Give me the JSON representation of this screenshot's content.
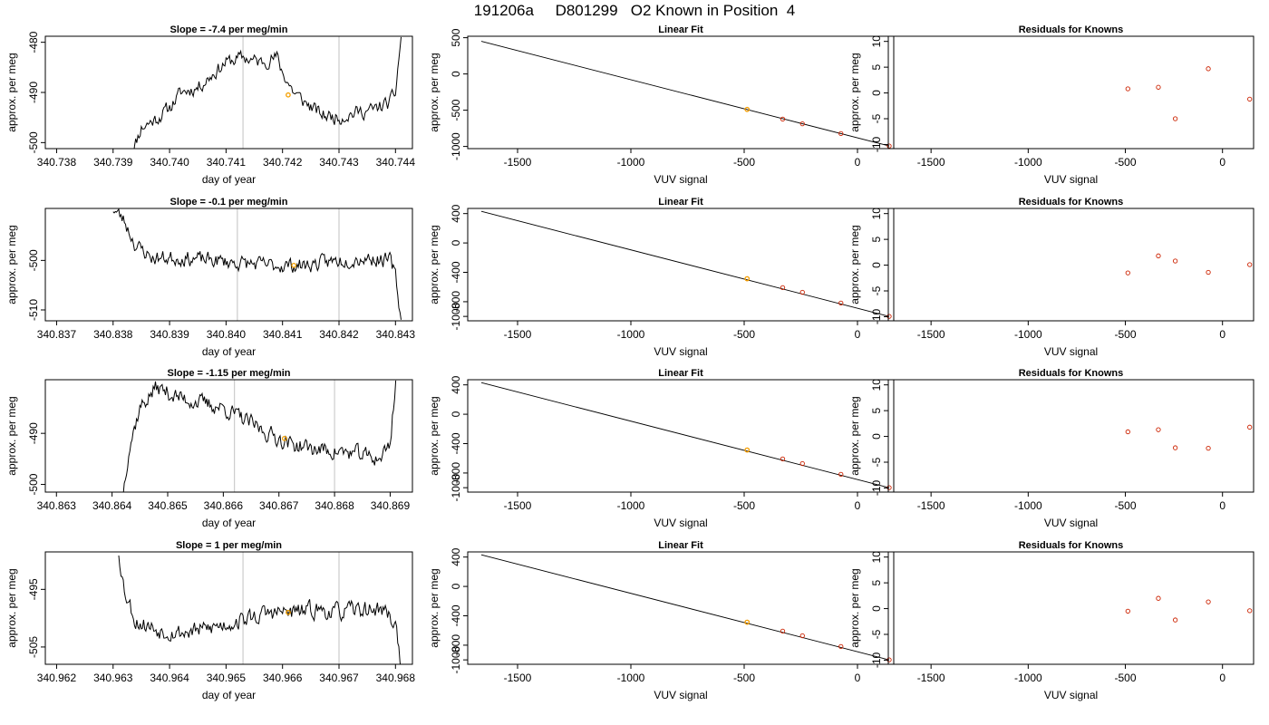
{
  "figure": {
    "title": "191206a     D801299   O2 Known in Position  4"
  },
  "colors": {
    "line": "#000000",
    "known_point": "#cc2200",
    "highlight_point": "#f5a000",
    "marker_line": "#cccccc"
  },
  "chart_data": [
    {
      "type": "line",
      "row": 0,
      "col": 0,
      "title": "Slope =  -7.4  per meg/min",
      "xlabel": "day of year",
      "ylabel": "approx. per meg",
      "xlim": [
        340.7378,
        340.7443
      ],
      "ylim": [
        -501.2,
        -478.8
      ],
      "x_ticks": [
        "340.738",
        "340.739",
        "340.740",
        "340.741",
        "340.742",
        "340.743",
        "340.744"
      ],
      "x_tick_values": [
        340.738,
        340.739,
        340.74,
        340.741,
        340.742,
        340.743,
        340.744
      ],
      "y_ticks": [
        "-500",
        "-490",
        "-480"
      ],
      "y_tick_values": [
        -500,
        -490,
        -480
      ],
      "markers_x": [
        340.7413,
        340.743
      ],
      "series": [
        {
          "x_range": [
            340.7393,
            340.7441
          ],
          "step": 2e-05,
          "base": [
            [
              340.7393,
              -503
            ],
            [
              340.7395,
              -497
            ],
            [
              340.7398,
              -495
            ],
            [
              340.74,
              -493
            ],
            [
              340.7402,
              -490
            ],
            [
              340.7405,
              -489
            ],
            [
              340.7408,
              -486
            ],
            [
              340.741,
              -484
            ],
            [
              340.7413,
              -483
            ],
            [
              340.7416,
              -484
            ],
            [
              340.7419,
              -483
            ],
            [
              340.742,
              -486
            ],
            [
              340.7422,
              -490
            ],
            [
              340.7424,
              -492
            ],
            [
              340.7427,
              -494.5
            ],
            [
              340.743,
              -495
            ],
            [
              340.7433,
              -494
            ],
            [
              340.7436,
              -493.5
            ],
            [
              340.7439,
              -492
            ],
            [
              340.744,
              -490
            ],
            [
              340.7441,
              -478.8
            ]
          ],
          "amplitude": 1.2,
          "seed": 11
        }
      ],
      "highlight": {
        "x": 340.7421,
        "y": -490.5
      }
    },
    {
      "type": "scatter",
      "row": 0,
      "col": 1,
      "title": "Linear Fit",
      "xlabel": "VUV signal",
      "ylabel": "approx. per meg",
      "xlim": [
        -1720,
        160
      ],
      "ylim": [
        -1030,
        520
      ],
      "x_ticks": [
        "-1500",
        "-1000",
        "-500",
        "0"
      ],
      "x_tick_values": [
        -1500,
        -1000,
        -500,
        0
      ],
      "y_ticks": [
        "-1000",
        "-500",
        "0",
        "500"
      ],
      "y_tick_values": [
        -1000,
        -500,
        0,
        500
      ],
      "fit_line": [
        [
          -1660,
          450
        ],
        [
          140,
          -994
        ]
      ],
      "points": [
        [
          -487,
          -489
        ],
        [
          -330,
          -622
        ],
        [
          -243,
          -688
        ],
        [
          -73,
          -822
        ],
        [
          140,
          -994
        ]
      ],
      "highlight": {
        "x": -487,
        "y": -489
      }
    },
    {
      "type": "scatter",
      "row": 0,
      "col": 2,
      "title": "Residuals for Knowns",
      "xlabel": "VUV signal",
      "ylabel": "approx. per meg",
      "xlim": [
        -1720,
        160
      ],
      "ylim": [
        -10.8,
        11
      ],
      "x_ticks": [
        "-1500",
        "-1000",
        "-500",
        "0"
      ],
      "x_tick_values": [
        -1500,
        -1000,
        -500,
        0
      ],
      "y_ticks": [
        "-10",
        "-5",
        "0",
        "5",
        "10"
      ],
      "y_tick_values": [
        -10,
        -5,
        0,
        5,
        10
      ],
      "points": [
        [
          -487,
          0.8
        ],
        [
          -330,
          1.1
        ],
        [
          -243,
          -5.0
        ],
        [
          -73,
          4.7
        ],
        [
          140,
          -1.2
        ]
      ]
    },
    {
      "type": "line",
      "row": 1,
      "col": 0,
      "title": "Slope =  -0.1  per meg/min",
      "xlabel": "day of year",
      "ylabel": "approx. per meg",
      "xlim": [
        340.8368,
        340.8433
      ],
      "ylim": [
        -512.2,
        -489.5
      ],
      "x_ticks": [
        "340.837",
        "340.838",
        "340.839",
        "340.840",
        "340.841",
        "340.842",
        "340.843"
      ],
      "x_tick_values": [
        340.837,
        340.838,
        340.839,
        340.84,
        340.841,
        340.842,
        340.843
      ],
      "y_ticks": [
        "-510",
        "-500"
      ],
      "y_tick_values": [
        -510,
        -500
      ],
      "markers_x": [
        340.8402,
        340.842
      ],
      "series": [
        {
          "x_range": [
            340.838,
            340.8431
          ],
          "step": 2e-05,
          "base": [
            [
              340.838,
              -489.5
            ],
            [
              340.8382,
              -492
            ],
            [
              340.8384,
              -497
            ],
            [
              340.8387,
              -499.5
            ],
            [
              340.8392,
              -499.5
            ],
            [
              340.8398,
              -500
            ],
            [
              340.8402,
              -500.5
            ],
            [
              340.8408,
              -501
            ],
            [
              340.8414,
              -501
            ],
            [
              340.842,
              -500
            ],
            [
              340.8425,
              -499.5
            ],
            [
              340.8429,
              -500
            ],
            [
              340.843,
              -503
            ],
            [
              340.8431,
              -512.2
            ]
          ],
          "amplitude": 1.3,
          "seed": 23
        }
      ],
      "highlight": {
        "x": 340.8412,
        "y": -501
      }
    },
    {
      "type": "scatter",
      "row": 1,
      "col": 1,
      "title": "Linear Fit",
      "xlabel": "VUV signal",
      "ylabel": "approx. per meg",
      "xlim": [
        -1720,
        160
      ],
      "ylim": [
        -1060,
        470
      ],
      "x_ticks": [
        "-1500",
        "-1000",
        "-500",
        "0"
      ],
      "x_tick_values": [
        -1500,
        -1000,
        -500,
        0
      ],
      "y_ticks": [
        "-1000",
        "-800",
        "-400",
        "0",
        "400"
      ],
      "y_tick_values": [
        -1000,
        -800,
        -400,
        0,
        400
      ],
      "fit_line": [
        [
          -1660,
          430
        ],
        [
          140,
          -1000
        ]
      ],
      "points": [
        [
          -487,
          -487
        ],
        [
          -330,
          -608
        ],
        [
          -243,
          -672
        ],
        [
          -73,
          -818
        ],
        [
          140,
          -1000
        ]
      ],
      "highlight": {
        "x": -487,
        "y": -487
      }
    },
    {
      "type": "scatter",
      "row": 1,
      "col": 2,
      "title": "Residuals for Knowns",
      "xlabel": "VUV signal",
      "ylabel": "approx. per meg",
      "xlim": [
        -1720,
        160
      ],
      "ylim": [
        -10.8,
        11
      ],
      "x_ticks": [
        "-1500",
        "-1000",
        "-500",
        "0"
      ],
      "x_tick_values": [
        -1500,
        -1000,
        -500,
        0
      ],
      "y_ticks": [
        "-10",
        "-5",
        "0",
        "5",
        "10"
      ],
      "y_tick_values": [
        -10,
        -5,
        0,
        5,
        10
      ],
      "points": [
        [
          -487,
          -1.5
        ],
        [
          -330,
          1.8
        ],
        [
          -243,
          0.8
        ],
        [
          -73,
          -1.4
        ],
        [
          140,
          0.1
        ]
      ]
    },
    {
      "type": "line",
      "row": 2,
      "col": 0,
      "title": "Slope =  -1.15  per meg/min",
      "xlabel": "day of year",
      "ylabel": "approx. per meg",
      "xlim": [
        340.8628,
        340.8694
      ],
      "ylim": [
        -501.5,
        -479.5
      ],
      "x_ticks": [
        "340.863",
        "340.864",
        "340.865",
        "340.866",
        "340.867",
        "340.868",
        "340.869"
      ],
      "x_tick_values": [
        340.863,
        340.864,
        340.865,
        340.866,
        340.867,
        340.868,
        340.869
      ],
      "y_ticks": [
        "-500",
        "-490"
      ],
      "y_tick_values": [
        -500,
        -490
      ],
      "markers_x": [
        340.8662,
        340.868
      ],
      "series": [
        {
          "x_range": [
            340.8642,
            340.8691
          ],
          "step": 2e-05,
          "base": [
            [
              340.8642,
              -501.5
            ],
            [
              340.8643,
              -493
            ],
            [
              340.8645,
              -485
            ],
            [
              340.8648,
              -481
            ],
            [
              340.8652,
              -483
            ],
            [
              340.8656,
              -484
            ],
            [
              340.866,
              -485
            ],
            [
              340.8664,
              -487.5
            ],
            [
              340.8668,
              -490
            ],
            [
              340.8672,
              -492
            ],
            [
              340.8676,
              -493
            ],
            [
              340.868,
              -493.5
            ],
            [
              340.8684,
              -494
            ],
            [
              340.8688,
              -495
            ],
            [
              340.869,
              -492
            ],
            [
              340.8691,
              -479.5
            ]
          ],
          "amplitude": 1.4,
          "seed": 37
        }
      ],
      "highlight": {
        "x": 340.8671,
        "y": -491
      }
    },
    {
      "type": "scatter",
      "row": 2,
      "col": 1,
      "title": "Linear Fit",
      "xlabel": "VUV signal",
      "ylabel": "approx. per meg",
      "xlim": [
        -1720,
        160
      ],
      "ylim": [
        -1060,
        470
      ],
      "x_ticks": [
        "-1500",
        "-1000",
        "-500",
        "0"
      ],
      "x_tick_values": [
        -1500,
        -1000,
        -500,
        0
      ],
      "y_ticks": [
        "-1000",
        "-800",
        "-400",
        "0",
        "400"
      ],
      "y_tick_values": [
        -1000,
        -800,
        -400,
        0,
        400
      ],
      "fit_line": [
        [
          -1660,
          430
        ],
        [
          140,
          -1000
        ]
      ],
      "points": [
        [
          -487,
          -487
        ],
        [
          -330,
          -608
        ],
        [
          -243,
          -672
        ],
        [
          -73,
          -818
        ],
        [
          140,
          -1000
        ]
      ],
      "highlight": {
        "x": -487,
        "y": -487
      }
    },
    {
      "type": "scatter",
      "row": 2,
      "col": 2,
      "title": "Residuals for Knowns",
      "xlabel": "VUV signal",
      "ylabel": "approx. per meg",
      "xlim": [
        -1720,
        160
      ],
      "ylim": [
        -10.8,
        11
      ],
      "x_ticks": [
        "-1500",
        "-1000",
        "-500",
        "0"
      ],
      "x_tick_values": [
        -1500,
        -1000,
        -500,
        0
      ],
      "y_ticks": [
        "-10",
        "-5",
        "0",
        "5",
        "10"
      ],
      "y_tick_values": [
        -10,
        -5,
        0,
        5,
        10
      ],
      "points": [
        [
          -487,
          0.9
        ],
        [
          -330,
          1.3
        ],
        [
          -243,
          -2.2
        ],
        [
          -73,
          -2.3
        ],
        [
          140,
          1.8
        ]
      ]
    },
    {
      "type": "line",
      "row": 3,
      "col": 0,
      "title": "Slope =  1  per meg/min",
      "xlabel": "day of year",
      "ylabel": "approx. per meg",
      "xlim": [
        340.9618,
        340.9683
      ],
      "ylim": [
        -508,
        -488.5
      ],
      "x_ticks": [
        "340.962",
        "340.963",
        "340.964",
        "340.965",
        "340.966",
        "340.967",
        "340.968"
      ],
      "x_tick_values": [
        340.962,
        340.963,
        340.964,
        340.965,
        340.966,
        340.967,
        340.968
      ],
      "y_ticks": [
        "-505",
        "-495"
      ],
      "y_tick_values": [
        -505,
        -495
      ],
      "markers_x": [
        340.9653,
        340.967
      ],
      "series": [
        {
          "x_range": [
            340.9631,
            340.9681
          ],
          "step": 2e-05,
          "base": [
            [
              340.9631,
              -488.5
            ],
            [
              340.9632,
              -495
            ],
            [
              340.9634,
              -500.5
            ],
            [
              340.9638,
              -502
            ],
            [
              340.9642,
              -502.5
            ],
            [
              340.9646,
              -502
            ],
            [
              340.965,
              -501
            ],
            [
              340.9654,
              -500
            ],
            [
              340.9658,
              -499
            ],
            [
              340.9662,
              -499
            ],
            [
              340.9666,
              -498.5
            ],
            [
              340.967,
              -499
            ],
            [
              340.9674,
              -498.5
            ],
            [
              340.9678,
              -498.5
            ],
            [
              340.968,
              -501
            ],
            [
              340.9681,
              -508
            ]
          ],
          "amplitude": 1.3,
          "seed": 53
        }
      ],
      "highlight": {
        "x": 340.9661,
        "y": -499
      }
    },
    {
      "type": "scatter",
      "row": 3,
      "col": 1,
      "title": "Linear Fit",
      "xlabel": "VUV signal",
      "ylabel": "approx. per meg",
      "xlim": [
        -1720,
        160
      ],
      "ylim": [
        -1060,
        470
      ],
      "x_ticks": [
        "-1500",
        "-1000",
        "-500",
        "0"
      ],
      "x_tick_values": [
        -1500,
        -1000,
        -500,
        0
      ],
      "y_ticks": [
        "-1000",
        "-800",
        "-400",
        "0",
        "400"
      ],
      "y_tick_values": [
        -1000,
        -800,
        -400,
        0,
        400
      ],
      "fit_line": [
        [
          -1660,
          430
        ],
        [
          140,
          -1000
        ]
      ],
      "points": [
        [
          -487,
          -487
        ],
        [
          -330,
          -608
        ],
        [
          -243,
          -672
        ],
        [
          -73,
          -818
        ],
        [
          140,
          -1000
        ]
      ],
      "highlight": {
        "x": -487,
        "y": -487
      }
    },
    {
      "type": "scatter",
      "row": 3,
      "col": 2,
      "title": "Residuals for Knowns",
      "xlabel": "VUV signal",
      "ylabel": "approx. per meg",
      "xlim": [
        -1720,
        160
      ],
      "ylim": [
        -10.8,
        11
      ],
      "x_ticks": [
        "-1500",
        "-1000",
        "-500",
        "0"
      ],
      "x_tick_values": [
        -1500,
        -1000,
        -500,
        0
      ],
      "y_ticks": [
        "-10",
        "-5",
        "0",
        "5",
        "10"
      ],
      "y_tick_values": [
        -10,
        -5,
        0,
        5,
        10
      ],
      "points": [
        [
          -487,
          -0.5
        ],
        [
          -330,
          2.0
        ],
        [
          -243,
          -2.2
        ],
        [
          -73,
          1.3
        ],
        [
          140,
          -0.4
        ]
      ]
    }
  ]
}
